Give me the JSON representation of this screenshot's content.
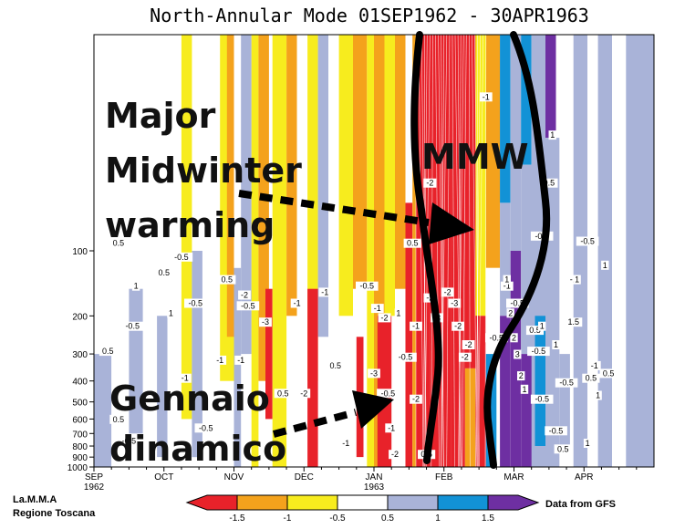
{
  "chart_data": {
    "type": "heatmap",
    "title": "North-Annular Mode 01SEP1962 - 30APR1963",
    "x_ticks": [
      {
        "label": "SEP",
        "sub": "1962"
      },
      {
        "label": "OCT",
        "sub": ""
      },
      {
        "label": "NOV",
        "sub": ""
      },
      {
        "label": "DEC",
        "sub": ""
      },
      {
        "label": "JAN",
        "sub": "1963"
      },
      {
        "label": "FEB",
        "sub": ""
      },
      {
        "label": "MAR",
        "sub": ""
      },
      {
        "label": "APR",
        "sub": ""
      }
    ],
    "y_axis": {
      "scale": "log",
      "ticks": [
        "100",
        "200",
        "300",
        "400",
        "500",
        "600",
        "700",
        "800",
        "900",
        "1000"
      ]
    },
    "color_scale": {
      "labels": [
        "-1.5",
        "-1",
        "-0.5",
        "0.5",
        "1",
        "1.5"
      ],
      "colors": [
        "#e8222a",
        "#f4a21c",
        "#f7ec1e",
        "#ffffff",
        "#a9b3d8",
        "#1292d6",
        "#6e2fa2"
      ]
    },
    "contour_labels": [
      {
        "month": 0.35,
        "p": 95,
        "v": "0.5"
      },
      {
        "month": 0.6,
        "p": 150,
        "v": "1"
      },
      {
        "month": 0.2,
        "p": 300,
        "v": "0.5"
      },
      {
        "month": 0.55,
        "p": 230,
        "v": "-0.5"
      },
      {
        "month": 0.5,
        "p": 780,
        "v": "-0.5"
      },
      {
        "month": 0.35,
        "p": 620,
        "v": "0.5"
      },
      {
        "month": 1.0,
        "p": 130,
        "v": "0.5"
      },
      {
        "month": 1.1,
        "p": 200,
        "v": "1"
      },
      {
        "month": 1.3,
        "p": 400,
        "v": "-1"
      },
      {
        "month": 1.25,
        "p": 110,
        "v": "-0.5"
      },
      {
        "month": 1.9,
        "p": 140,
        "v": "0.5"
      },
      {
        "month": 1.8,
        "p": 330,
        "v": "-1"
      },
      {
        "month": 1.6,
        "p": 680,
        "v": "-0.5"
      },
      {
        "month": 1.45,
        "p": 180,
        "v": "-0.5"
      },
      {
        "month": 2.1,
        "p": 330,
        "v": "-1"
      },
      {
        "month": 2.2,
        "p": 185,
        "v": "-0.5"
      },
      {
        "month": 2.15,
        "p": 165,
        "v": "-2"
      },
      {
        "month": 2.45,
        "p": 220,
        "v": "-3"
      },
      {
        "month": 2.7,
        "p": 470,
        "v": "0.5"
      },
      {
        "month": 3.0,
        "p": 470,
        "v": "-2"
      },
      {
        "month": 2.9,
        "p": 180,
        "v": "-1"
      },
      {
        "month": 3.3,
        "p": 160,
        "v": "-1"
      },
      {
        "month": 3.45,
        "p": 350,
        "v": "0.5"
      },
      {
        "month": 3.6,
        "p": 800,
        "v": "-1"
      },
      {
        "month": 3.9,
        "p": 150,
        "v": "-0.5"
      },
      {
        "month": 4.0,
        "p": 380,
        "v": "-3"
      },
      {
        "month": 4.05,
        "p": 190,
        "v": "-1"
      },
      {
        "month": 4.15,
        "p": 210,
        "v": "-2"
      },
      {
        "month": 4.2,
        "p": 470,
        "v": "-0.5"
      },
      {
        "month": 4.25,
        "p": 680,
        "v": "-1"
      },
      {
        "month": 4.3,
        "p": 900,
        "v": "-2"
      },
      {
        "month": 4.35,
        "p": 200,
        "v": "1"
      },
      {
        "month": 4.45,
        "p": 320,
        "v": "-0.5"
      },
      {
        "month": 4.55,
        "p": 95,
        "v": "0.5"
      },
      {
        "month": 4.6,
        "p": 230,
        "v": "-1"
      },
      {
        "month": 4.6,
        "p": 500,
        "v": "-2"
      },
      {
        "month": 4.75,
        "p": 900,
        "v": "0.5"
      },
      {
        "month": 4.8,
        "p": 170,
        "v": "-2"
      },
      {
        "month": 4.9,
        "p": 210,
        "v": "-3"
      },
      {
        "month": 5.05,
        "p": 160,
        "v": "-2"
      },
      {
        "month": 5.15,
        "p": 180,
        "v": "-3"
      },
      {
        "month": 5.2,
        "p": 230,
        "v": "-2"
      },
      {
        "month": 5.3,
        "p": 320,
        "v": "-2"
      },
      {
        "month": 5.35,
        "p": 280,
        "v": "-2"
      },
      {
        "month": 4.8,
        "p": 50,
        "v": "-2"
      },
      {
        "month": 5.6,
        "p": 20,
        "v": "-1"
      },
      {
        "month": 5.75,
        "p": 260,
        "v": "-0.5"
      },
      {
        "month": 5.9,
        "p": 150,
        "v": "-1"
      },
      {
        "month": 5.95,
        "p": 200,
        "v": "2"
      },
      {
        "month": 6.0,
        "p": 260,
        "v": "2"
      },
      {
        "month": 6.05,
        "p": 310,
        "v": "3"
      },
      {
        "month": 5.9,
        "p": 140,
        "v": "1"
      },
      {
        "month": 6.05,
        "p": 180,
        "v": "-0.5"
      },
      {
        "month": 6.5,
        "p": 50,
        "v": "0.5"
      },
      {
        "month": 6.55,
        "p": 30,
        "v": "1"
      },
      {
        "month": 6.4,
        "p": 88,
        "v": "-0.5"
      },
      {
        "month": 6.3,
        "p": 240,
        "v": "0.5"
      },
      {
        "month": 6.35,
        "p": 300,
        "v": "-0.5"
      },
      {
        "month": 6.4,
        "p": 230,
        "v": "1"
      },
      {
        "month": 6.6,
        "p": 280,
        "v": "1"
      },
      {
        "month": 6.1,
        "p": 390,
        "v": "2"
      },
      {
        "month": 6.15,
        "p": 450,
        "v": "1"
      },
      {
        "month": 6.4,
        "p": 500,
        "v": "-0.5"
      },
      {
        "month": 6.75,
        "p": 420,
        "v": "-0.5"
      },
      {
        "month": 6.85,
        "p": 140,
        "v": "-1"
      },
      {
        "month": 7.05,
        "p": 93,
        "v": "-0.5"
      },
      {
        "month": 6.85,
        "p": 220,
        "v": "1.5"
      },
      {
        "month": 6.9,
        "p": 140,
        "v": "1"
      },
      {
        "month": 7.1,
        "p": 400,
        "v": "0.5"
      },
      {
        "month": 7.15,
        "p": 350,
        "v": "-1"
      },
      {
        "month": 6.6,
        "p": 700,
        "v": "-0.5"
      },
      {
        "month": 7.2,
        "p": 480,
        "v": "1"
      },
      {
        "month": 7.3,
        "p": 120,
        "v": "1"
      },
      {
        "month": 7.05,
        "p": 800,
        "v": "1"
      },
      {
        "month": 6.7,
        "p": 850,
        "v": "0.5"
      },
      {
        "month": 7.35,
        "p": 380,
        "v": "0.5"
      }
    ],
    "annotations": [
      {
        "text": "Major",
        "x": 115,
        "y": 140
      },
      {
        "text": "Midwinter",
        "x": 115,
        "y": 200
      },
      {
        "text": "warming",
        "x": 115,
        "y": 260
      },
      {
        "text": "MMW",
        "x": 462,
        "y": 185
      },
      {
        "text": "Gennaio",
        "x": 120,
        "y": 450
      },
      {
        "text": "dinamico",
        "x": 120,
        "y": 505
      }
    ],
    "footer": {
      "left_line1": "La.M.M.A",
      "left_line2": "Regione Toscana",
      "right": "Data from GFS"
    }
  }
}
